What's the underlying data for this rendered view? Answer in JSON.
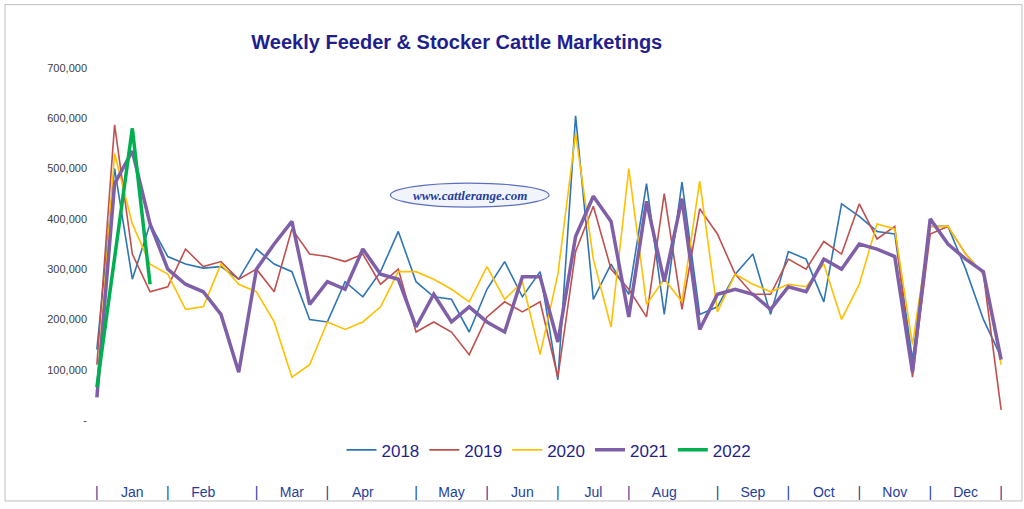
{
  "chart_data": {
    "type": "line",
    "title": "Weekly Feeder & Stocker Cattle Marketings",
    "annotation": "www.cattlerange.com",
    "categories": [
      "|",
      null,
      "Jan",
      null,
      "|",
      null,
      "Feb",
      null,
      null,
      "|",
      null,
      "Mar",
      null,
      "|",
      null,
      "Apr",
      null,
      null,
      "|",
      null,
      "May",
      null,
      "|",
      null,
      "Jun",
      null,
      "|",
      null,
      "Jul",
      null,
      "|",
      null,
      "Aug",
      null,
      null,
      "|",
      null,
      "Sep",
      null,
      "|",
      null,
      "Oct",
      null,
      "|",
      null,
      "Nov",
      null,
      "|",
      null,
      "Dec",
      null,
      "|"
    ],
    "series": [
      {
        "name": "2018",
        "color": "#2e75b6",
        "values": [
          140000,
          500000,
          280000,
          390000,
          325000,
          310000,
          302000,
          305000,
          280000,
          340000,
          310000,
          295000,
          200000,
          195000,
          275000,
          245000,
          295000,
          375000,
          275000,
          245000,
          240000,
          175000,
          260000,
          315000,
          245000,
          295000,
          80000,
          605000,
          240000,
          310000,
          250000,
          470000,
          210000,
          473000,
          210000,
          225000,
          290000,
          330000,
          210000,
          335000,
          320000,
          235000,
          430000,
          405000,
          375000,
          370000,
          120000,
          385000,
          385000,
          300000,
          200000,
          125000
        ]
      },
      {
        "name": "2019",
        "color": "#c0504d",
        "values": [
          110000,
          587000,
          330000,
          255000,
          265000,
          340000,
          305000,
          315000,
          280000,
          300000,
          255000,
          380000,
          330000,
          325000,
          315000,
          330000,
          270000,
          300000,
          175000,
          195000,
          175000,
          130000,
          205000,
          235000,
          215000,
          235000,
          85000,
          335000,
          425000,
          300000,
          260000,
          205000,
          450000,
          220000,
          420000,
          370000,
          290000,
          250000,
          250000,
          320000,
          300000,
          355000,
          330000,
          430000,
          360000,
          385000,
          85000,
          370000,
          385000,
          330000,
          290000,
          20000
        ]
      },
      {
        "name": "2020",
        "color": "#ffc000",
        "values": [
          60000,
          530000,
          390000,
          310000,
          290000,
          220000,
          225000,
          310000,
          270000,
          255000,
          195000,
          85000,
          110000,
          195000,
          180000,
          195000,
          225000,
          295000,
          295000,
          280000,
          260000,
          235000,
          305000,
          240000,
          275000,
          130000,
          290000,
          570000,
          320000,
          185000,
          500000,
          230000,
          280000,
          235000,
          475000,
          215000,
          290000,
          270000,
          255000,
          270000,
          265000,
          310000,
          200000,
          270000,
          390000,
          380000,
          150000,
          385000,
          385000,
          330000,
          290000,
          110000
        ]
      },
      {
        "name": "2021",
        "color": "#7f5fa8",
        "values": [
          45000,
          470000,
          535000,
          390000,
          300000,
          270000,
          255000,
          210000,
          95000,
          300000,
          350000,
          395000,
          230000,
          275000,
          260000,
          340000,
          290000,
          280000,
          185000,
          250000,
          195000,
          225000,
          195000,
          175000,
          285000,
          285000,
          155000,
          365000,
          445000,
          395000,
          205000,
          435000,
          275000,
          440000,
          180000,
          250000,
          260000,
          250000,
          220000,
          265000,
          255000,
          320000,
          300000,
          350000,
          340000,
          325000,
          95000,
          400000,
          350000,
          320000,
          295000,
          120000
        ]
      },
      {
        "name": "2022",
        "color": "#00b050",
        "values": [
          65000,
          320000,
          580000,
          270000,
          null,
          null,
          null,
          null,
          null,
          null,
          null,
          null,
          null,
          null,
          null,
          null,
          null,
          null,
          null,
          null,
          null,
          null,
          null,
          null,
          null,
          null,
          null,
          null,
          null,
          null,
          null,
          null,
          null,
          null,
          null,
          null,
          null,
          null,
          null,
          null,
          null,
          null,
          null,
          null,
          null,
          null,
          null,
          null,
          null,
          null,
          null,
          null
        ]
      }
    ],
    "ylim": [
      0,
      700000
    ],
    "yticks": [
      {
        "value": 0,
        "label": "-"
      },
      {
        "value": 100000,
        "label": "100,000"
      },
      {
        "value": 200000,
        "label": "200,000"
      },
      {
        "value": 300000,
        "label": "300,000"
      },
      {
        "value": 400000,
        "label": "400,000"
      },
      {
        "value": 500000,
        "label": "500,000"
      },
      {
        "value": 600000,
        "label": "600,000"
      },
      {
        "value": 700000,
        "label": "700,000"
      }
    ],
    "grid": false,
    "legend": "bottom"
  }
}
